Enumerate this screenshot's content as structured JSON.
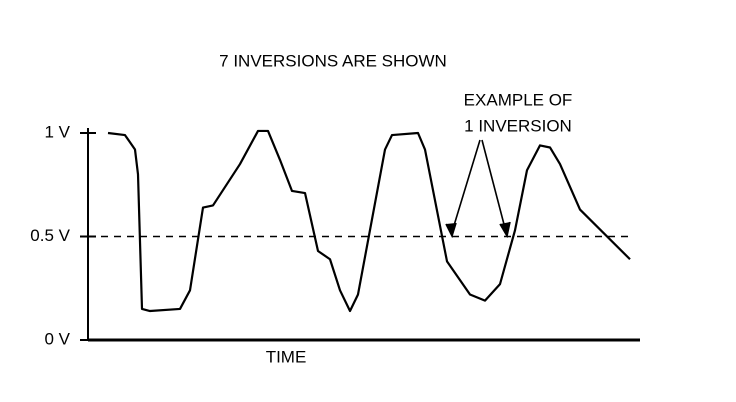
{
  "chart_data": {
    "type": "line",
    "title": "7 INVERSIONS ARE SHOWN",
    "annotation": [
      "EXAMPLE OF",
      "1 INVERSION"
    ],
    "x_label": "TIME",
    "x": [
      20,
      37,
      47,
      50,
      54,
      62,
      92,
      102,
      115,
      125,
      152,
      170,
      180,
      192,
      204,
      217,
      230,
      242,
      252,
      262,
      270,
      297,
      304,
      330,
      337,
      359,
      382,
      397,
      412,
      427,
      439,
      452,
      462,
      472,
      492,
      542
    ],
    "values": [
      1.0,
      0.99,
      0.92,
      0.8,
      0.15,
      0.14,
      0.15,
      0.24,
      0.64,
      0.65,
      0.85,
      1.01,
      1.01,
      0.87,
      0.72,
      0.71,
      0.43,
      0.39,
      0.24,
      0.14,
      0.22,
      0.92,
      0.99,
      1.0,
      0.92,
      0.38,
      0.22,
      0.19,
      0.27,
      0.53,
      0.82,
      0.94,
      0.93,
      0.85,
      0.63,
      0.39
    ],
    "color": "#000000",
    "xlim": [
      0,
      552
    ],
    "ylim": [
      0,
      1
    ],
    "yticks": [
      {
        "value": 0,
        "label": "0 V"
      },
      {
        "value": 0.5,
        "label": "0.5 V"
      },
      {
        "value": 1,
        "label": "1 V"
      }
    ],
    "reference_line": 0.5
  }
}
